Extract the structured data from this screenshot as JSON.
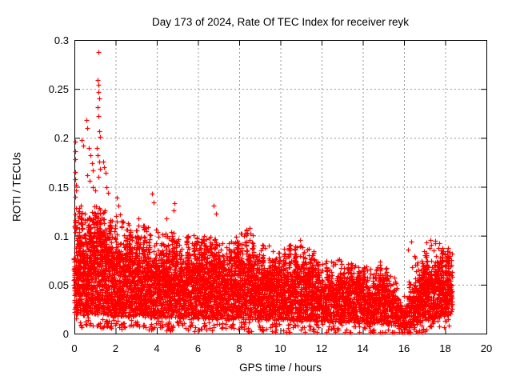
{
  "chart_data": {
    "type": "scatter",
    "title": "Day 173 of 2024, Rate Of TEC Index for receiver reyk",
    "xlabel": "GPS time / hours",
    "ylabel": "ROTI / TECUs",
    "xlim": [
      0,
      20
    ],
    "ylim": [
      0,
      0.3
    ],
    "xticks": [
      {
        "value": 0,
        "label": "0"
      },
      {
        "value": 2,
        "label": "2"
      },
      {
        "value": 4,
        "label": "4"
      },
      {
        "value": 6,
        "label": "6"
      },
      {
        "value": 8,
        "label": "8"
      },
      {
        "value": 10,
        "label": "10"
      },
      {
        "value": 12,
        "label": "12"
      },
      {
        "value": 14,
        "label": "14"
      },
      {
        "value": 16,
        "label": "16"
      },
      {
        "value": 18,
        "label": "18"
      },
      {
        "value": 20,
        "label": "20"
      }
    ],
    "yticks": [
      {
        "value": 0,
        "label": "0"
      },
      {
        "value": 0.05,
        "label": "0.05"
      },
      {
        "value": 0.1,
        "label": "0.1"
      },
      {
        "value": 0.15,
        "label": "0.15"
      },
      {
        "value": 0.2,
        "label": "0.2"
      },
      {
        "value": 0.25,
        "label": "0.25"
      },
      {
        "value": 0.3,
        "label": "0.3"
      }
    ],
    "grid": true,
    "legend": "none",
    "marker": {
      "shape": "plus",
      "color": "#ff0000",
      "size": 7
    },
    "colors": {
      "grid": "#999999",
      "axis": "#000000",
      "background": "#ffffff",
      "text": "#000000"
    },
    "data_summary": "Dense scatter of ROTI values every few seconds from 0 to ~18.33 h; band mostly 0.015-0.10 TECU early, slowly declining to 0.01-0.06 by 14 h, minimum quiet notch near 16 h (down to ~0.003), renewed activity 16.3-18.3 h up to ~0.1; strong outburst 0-2 h with peaks to 0.288 near 1.15 h",
    "x_data_range": [
      0,
      18.33
    ],
    "band_profile": {
      "x": [
        0,
        0.5,
        1.0,
        1.5,
        2.0,
        2.5,
        3.0,
        3.5,
        4.0,
        4.5,
        5.0,
        5.5,
        6.0,
        6.5,
        7.0,
        7.5,
        8.0,
        8.5,
        9.0,
        9.5,
        10.0,
        10.5,
        11.0,
        11.5,
        12.0,
        12.5,
        13.0,
        13.5,
        14.0,
        14.5,
        15.0,
        15.5,
        15.8,
        16.1,
        16.4,
        16.7,
        17.0,
        17.5,
        18.0,
        18.33
      ],
      "low": [
        0.016,
        0.016,
        0.016,
        0.015,
        0.015,
        0.014,
        0.014,
        0.014,
        0.013,
        0.013,
        0.013,
        0.013,
        0.012,
        0.012,
        0.012,
        0.012,
        0.012,
        0.012,
        0.012,
        0.011,
        0.011,
        0.011,
        0.01,
        0.01,
        0.01,
        0.01,
        0.009,
        0.009,
        0.008,
        0.008,
        0.008,
        0.006,
        0.004,
        0.003,
        0.006,
        0.009,
        0.011,
        0.013,
        0.015,
        0.02
      ],
      "core_high": [
        0.1,
        0.102,
        0.105,
        0.096,
        0.092,
        0.088,
        0.09,
        0.086,
        0.083,
        0.086,
        0.08,
        0.078,
        0.082,
        0.08,
        0.078,
        0.08,
        0.082,
        0.079,
        0.073,
        0.07,
        0.068,
        0.07,
        0.072,
        0.066,
        0.061,
        0.059,
        0.059,
        0.056,
        0.053,
        0.055,
        0.058,
        0.042,
        0.03,
        0.028,
        0.052,
        0.06,
        0.066,
        0.07,
        0.072,
        0.07
      ],
      "tail_high": [
        0.132,
        0.135,
        0.132,
        0.125,
        0.122,
        0.112,
        0.116,
        0.11,
        0.108,
        0.112,
        0.102,
        0.1,
        0.104,
        0.102,
        0.098,
        0.1,
        0.105,
        0.108,
        0.094,
        0.09,
        0.088,
        0.092,
        0.096,
        0.086,
        0.08,
        0.077,
        0.076,
        0.072,
        0.068,
        0.072,
        0.077,
        0.06,
        0.045,
        0.042,
        0.075,
        0.082,
        0.088,
        0.098,
        0.09,
        0.082
      ]
    },
    "outliers": [
      [
        0.02,
        0.196
      ],
      [
        0.04,
        0.186
      ],
      [
        0.05,
        0.178
      ],
      [
        0.02,
        0.165
      ],
      [
        0.04,
        0.158
      ],
      [
        0.06,
        0.152
      ],
      [
        0.08,
        0.146
      ],
      [
        0.03,
        0.14
      ],
      [
        0.35,
        0.198
      ],
      [
        0.42,
        0.192
      ],
      [
        0.58,
        0.218
      ],
      [
        0.64,
        0.21
      ],
      [
        0.7,
        0.19
      ],
      [
        0.76,
        0.182
      ],
      [
        0.84,
        0.174
      ],
      [
        0.9,
        0.167
      ],
      [
        0.62,
        0.162
      ],
      [
        0.72,
        0.156
      ],
      [
        0.88,
        0.15
      ],
      [
        1.0,
        0.146
      ],
      [
        1.15,
        0.288
      ],
      [
        1.13,
        0.259
      ],
      [
        1.18,
        0.254
      ],
      [
        1.16,
        0.247
      ],
      [
        1.2,
        0.24
      ],
      [
        1.14,
        0.231
      ],
      [
        1.17,
        0.222
      ],
      [
        1.22,
        0.207
      ],
      [
        1.26,
        0.201
      ],
      [
        1.1,
        0.19
      ],
      [
        1.12,
        0.182
      ],
      [
        1.2,
        0.176
      ],
      [
        1.24,
        0.168
      ],
      [
        1.18,
        0.16
      ],
      [
        1.38,
        0.176
      ],
      [
        1.44,
        0.17
      ],
      [
        1.5,
        0.164
      ],
      [
        1.56,
        0.15
      ],
      [
        1.62,
        0.144
      ],
      [
        2.06,
        0.139
      ],
      [
        2.12,
        0.131
      ],
      [
        2.2,
        0.122
      ],
      [
        2.28,
        0.115
      ],
      [
        3.1,
        0.118
      ],
      [
        3.78,
        0.143
      ],
      [
        3.85,
        0.134
      ],
      [
        4.45,
        0.118
      ],
      [
        4.85,
        0.133
      ],
      [
        4.83,
        0.126
      ],
      [
        6.74,
        0.131
      ],
      [
        6.87,
        0.123
      ],
      [
        7.85,
        0.099
      ],
      [
        8.5,
        0.108
      ],
      [
        8.55,
        0.102
      ],
      [
        10.95,
        0.096
      ],
      [
        11.0,
        0.09
      ],
      [
        11.05,
        0.088
      ],
      [
        16.2,
        0.086
      ],
      [
        16.35,
        0.094
      ],
      [
        16.5,
        0.079
      ],
      [
        17.1,
        0.093
      ],
      [
        17.3,
        0.096
      ],
      [
        17.33,
        0.091
      ],
      [
        17.45,
        0.085
      ]
    ],
    "density": {
      "column_step_hours": 0.05,
      "points_per_column": 26
    },
    "seed": 173
  }
}
